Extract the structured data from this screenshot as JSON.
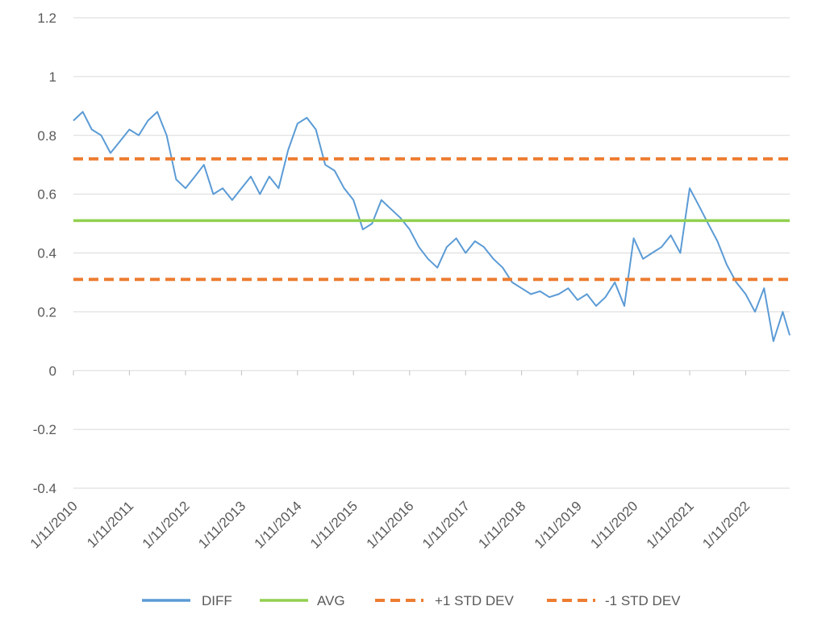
{
  "chart_data": {
    "type": "line",
    "title": "",
    "xlabel": "",
    "ylabel": "",
    "ylim": [
      -0.4,
      1.2
    ],
    "yticks": [
      "1.2",
      "1",
      "0.8",
      "0.6",
      "0.4",
      "0.2",
      "0",
      "-0.2",
      "-0.4"
    ],
    "ytick_values": [
      1.2,
      1.0,
      0.8,
      0.6,
      0.4,
      0.2,
      0.0,
      -0.2,
      -0.4
    ],
    "xlim": [
      "2010-11-01",
      "2023-08-15"
    ],
    "xticks": [
      "1/11/2010",
      "1/11/2011",
      "1/11/2012",
      "1/11/2013",
      "1/11/2014",
      "1/11/2015",
      "1/11/2016",
      "1/11/2017",
      "1/11/2018",
      "1/11/2019",
      "1/11/2020",
      "1/11/2021",
      "1/11/2022"
    ],
    "xtick_dates": [
      "2010-11-01",
      "2011-11-01",
      "2012-11-01",
      "2013-11-01",
      "2014-11-01",
      "2015-11-01",
      "2016-11-01",
      "2017-11-01",
      "2018-11-01",
      "2019-11-01",
      "2020-11-01",
      "2021-11-01",
      "2022-11-01"
    ],
    "grid": "horizontal",
    "legend_position": "bottom",
    "series": [
      {
        "name": "DIFF",
        "color": "#5B9BD5",
        "style": "solid",
        "x": [
          "2010-11-01",
          "2011-01-01",
          "2011-03-01",
          "2011-05-01",
          "2011-07-01",
          "2011-09-01",
          "2011-11-01",
          "2012-01-01",
          "2012-03-01",
          "2012-05-01",
          "2012-07-01",
          "2012-09-01",
          "2012-11-01",
          "2013-01-01",
          "2013-03-01",
          "2013-05-01",
          "2013-07-01",
          "2013-09-01",
          "2013-11-01",
          "2014-01-01",
          "2014-03-01",
          "2014-05-01",
          "2014-07-01",
          "2014-09-01",
          "2014-11-01",
          "2015-01-01",
          "2015-03-01",
          "2015-05-01",
          "2015-07-01",
          "2015-09-01",
          "2015-11-01",
          "2016-01-01",
          "2016-03-01",
          "2016-05-01",
          "2016-07-01",
          "2016-09-01",
          "2016-11-01",
          "2017-01-01",
          "2017-03-01",
          "2017-05-01",
          "2017-07-01",
          "2017-09-01",
          "2017-11-01",
          "2018-01-01",
          "2018-03-01",
          "2018-05-01",
          "2018-07-01",
          "2018-09-01",
          "2018-11-01",
          "2019-01-01",
          "2019-03-01",
          "2019-05-01",
          "2019-07-01",
          "2019-09-01",
          "2019-11-01",
          "2020-01-01",
          "2020-03-01",
          "2020-05-01",
          "2020-07-01",
          "2020-09-01",
          "2020-11-01",
          "2021-01-01",
          "2021-03-01",
          "2021-05-01",
          "2021-07-01",
          "2021-09-01",
          "2021-11-01",
          "2022-01-01",
          "2022-03-01",
          "2022-05-01",
          "2022-07-01",
          "2022-09-01",
          "2022-11-01",
          "2023-01-01",
          "2023-03-01",
          "2023-05-01",
          "2023-07-01",
          "2023-08-15"
        ],
        "values": [
          0.85,
          0.88,
          0.82,
          0.8,
          0.74,
          0.78,
          0.82,
          0.8,
          0.85,
          0.88,
          0.8,
          0.65,
          0.62,
          0.66,
          0.7,
          0.6,
          0.62,
          0.58,
          0.62,
          0.66,
          0.6,
          0.66,
          0.62,
          0.75,
          0.84,
          0.86,
          0.82,
          0.7,
          0.68,
          0.62,
          0.58,
          0.48,
          0.5,
          0.58,
          0.55,
          0.52,
          0.48,
          0.42,
          0.38,
          0.35,
          0.42,
          0.45,
          0.4,
          0.44,
          0.42,
          0.38,
          0.35,
          0.3,
          0.28,
          0.26,
          0.27,
          0.25,
          0.26,
          0.28,
          0.24,
          0.26,
          0.22,
          0.25,
          0.3,
          0.22,
          0.45,
          0.38,
          0.4,
          0.42,
          0.46,
          0.4,
          0.62,
          0.56,
          0.5,
          0.44,
          0.36,
          0.3,
          0.26,
          0.2,
          0.28,
          0.1,
          0.2,
          0.12
        ]
      },
      {
        "name": "AVG",
        "color": "#92D050",
        "style": "solid",
        "value": 0.51
      },
      {
        "name": "+1 STD DEV",
        "color": "#ED7D31",
        "style": "dashed",
        "value": 0.72
      },
      {
        "name": "-1 STD DEV",
        "color": "#ED7D31",
        "style": "dashed",
        "value": 0.31
      }
    ]
  }
}
